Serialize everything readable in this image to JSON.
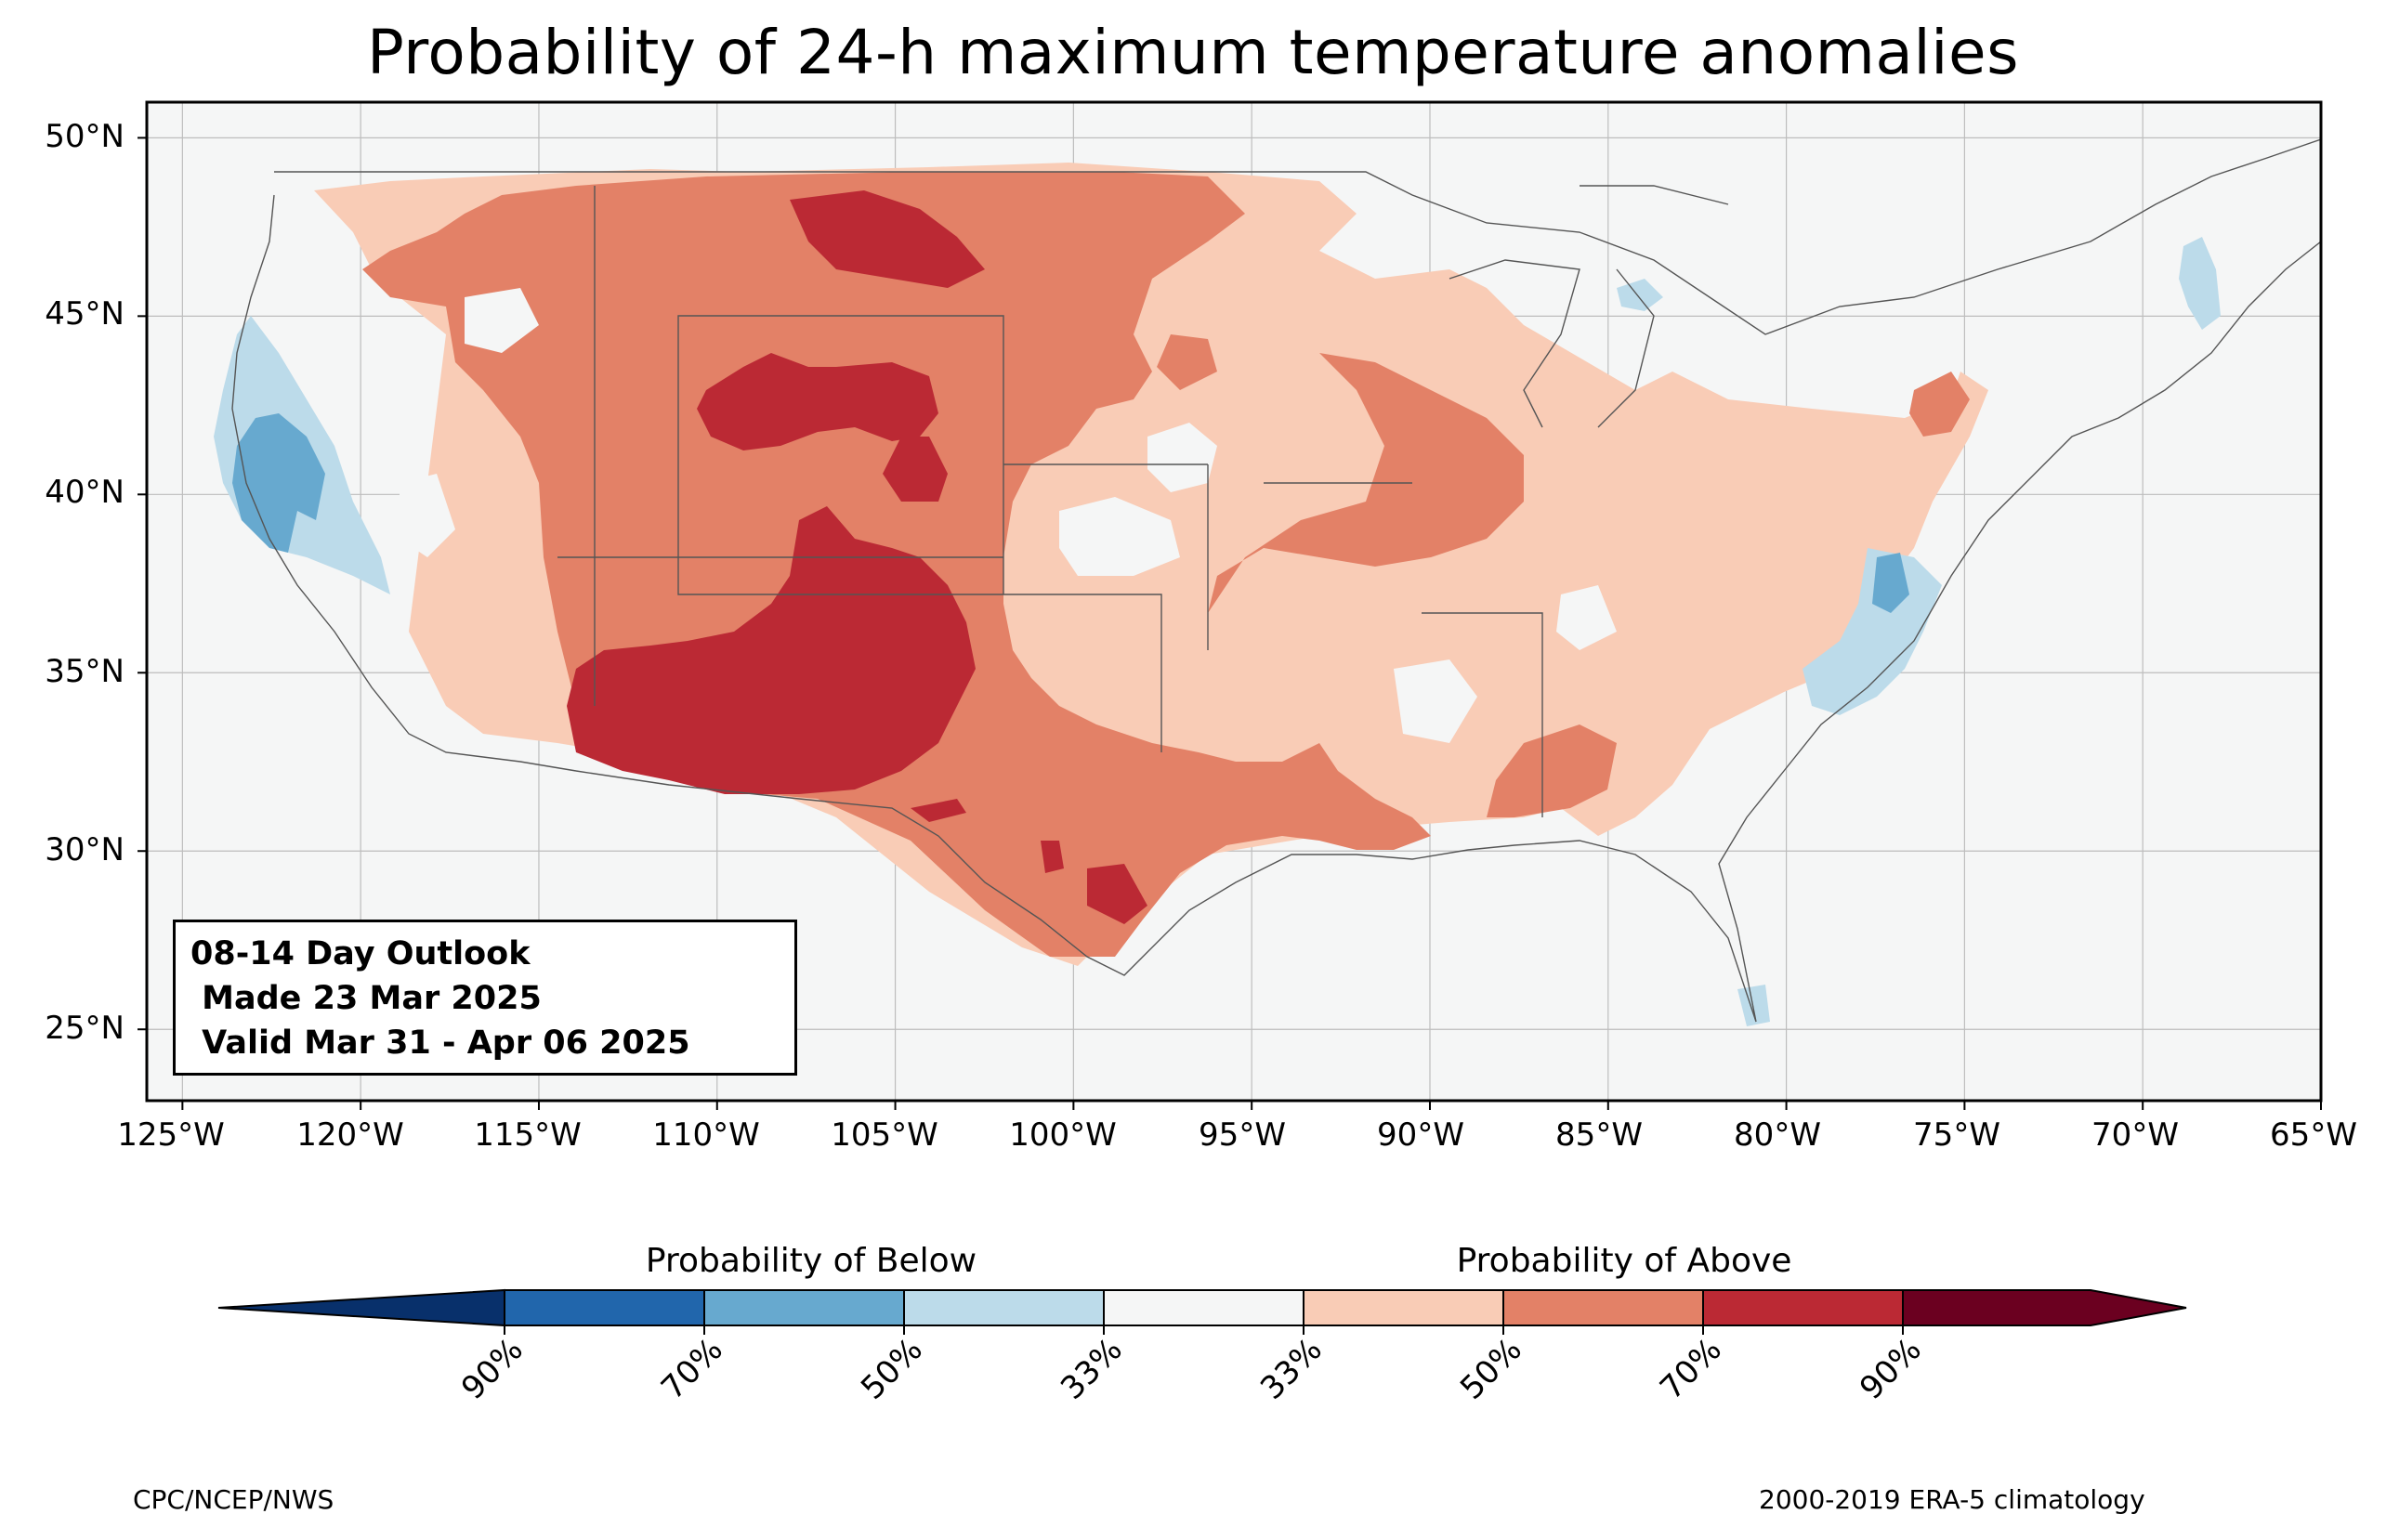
{
  "title": "Probability of 24-h maximum temperature anomalies",
  "map": {
    "lon_range": [
      -126,
      -65
    ],
    "lat_range": [
      23,
      51
    ],
    "lat_ticks": [
      {
        "value": 50,
        "label": "50°N"
      },
      {
        "value": 45,
        "label": "45°N"
      },
      {
        "value": 40,
        "label": "40°N"
      },
      {
        "value": 35,
        "label": "35°N"
      },
      {
        "value": 30,
        "label": "30°N"
      },
      {
        "value": 25,
        "label": "25°N"
      }
    ],
    "lon_ticks": [
      {
        "value": -125,
        "label": "125°W"
      },
      {
        "value": -120,
        "label": "120°W"
      },
      {
        "value": -115,
        "label": "115°W"
      },
      {
        "value": -110,
        "label": "110°W"
      },
      {
        "value": -105,
        "label": "105°W"
      },
      {
        "value": -100,
        "label": "100°W"
      },
      {
        "value": -95,
        "label": "95°W"
      },
      {
        "value": -90,
        "label": "90°W"
      },
      {
        "value": -85,
        "label": "85°W"
      },
      {
        "value": -80,
        "label": "80°W"
      },
      {
        "value": -75,
        "label": "75°W"
      },
      {
        "value": -70,
        "label": "70°W"
      },
      {
        "value": -65,
        "label": "65°W"
      }
    ],
    "gridlines": true
  },
  "outlook": {
    "line1": "08-14 Day Outlook",
    "line2": " Made 23 Mar 2025",
    "line3": " Valid Mar 31 - Apr 06 2025"
  },
  "colorbar": {
    "below_label": "Probability of Below",
    "above_label": "Probability of Above",
    "ticks": [
      "90%",
      "70%",
      "50%",
      "33%",
      "33%",
      "50%",
      "70%",
      "90%"
    ],
    "colors": [
      "#08306b",
      "#2166ac",
      "#67a9cf",
      "#bcdbea",
      "#f5f6f6",
      "#f9ccb6",
      "#e38167",
      "#bb2934",
      "#6b0020"
    ]
  },
  "credit_left": "CPC/NCEP/NWS",
  "credit_right": "2000-2019 ERA-5 climatology"
}
